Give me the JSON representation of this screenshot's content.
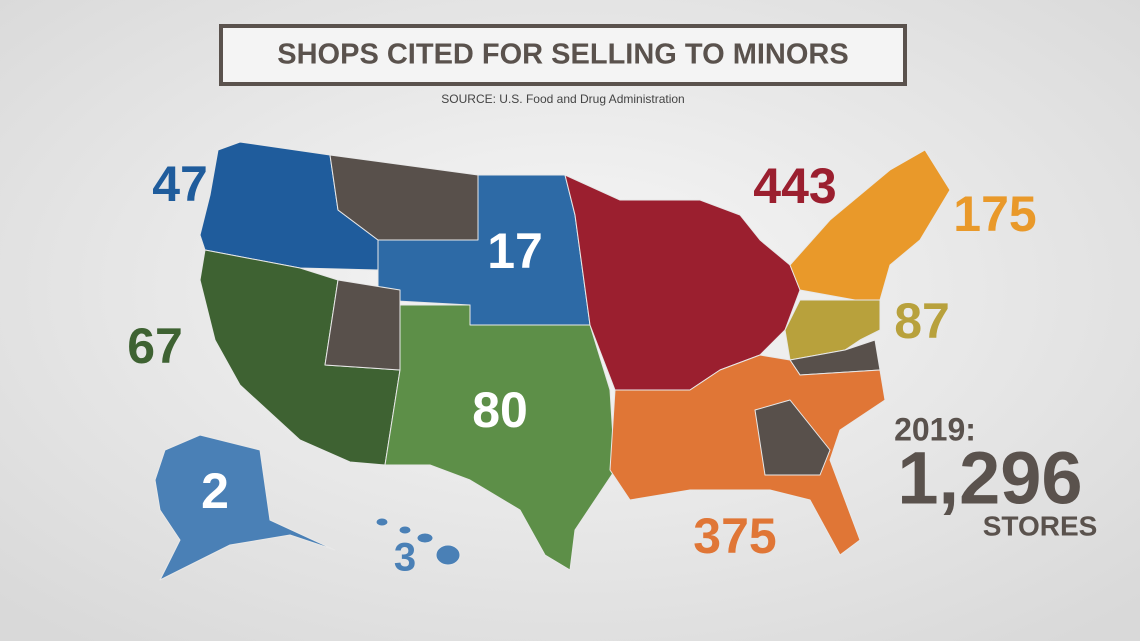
{
  "header": {
    "title": "SHOPS CITED FOR SELLING TO MINORS",
    "source": "SOURCE: U.S. Food and Drug Administration"
  },
  "regions": [
    {
      "value": 47,
      "color": "#1f5c9c"
    },
    {
      "value": 17,
      "color": "#ffffff"
    },
    {
      "value": 443,
      "color": "#9b1f2f"
    },
    {
      "value": 175,
      "color": "#e9992a"
    },
    {
      "value": 67,
      "color": "#3e6232"
    },
    {
      "value": 80,
      "color": "#ffffff"
    },
    {
      "value": 87,
      "color": "#b8a13c"
    },
    {
      "value": 375,
      "color": "#e07636"
    },
    {
      "value": 2,
      "color": "#ffffff"
    },
    {
      "value": 3,
      "color": "#4a80b6"
    }
  ],
  "total": {
    "year_label": "2019:",
    "count": "1,296",
    "unit": "STORES"
  }
}
